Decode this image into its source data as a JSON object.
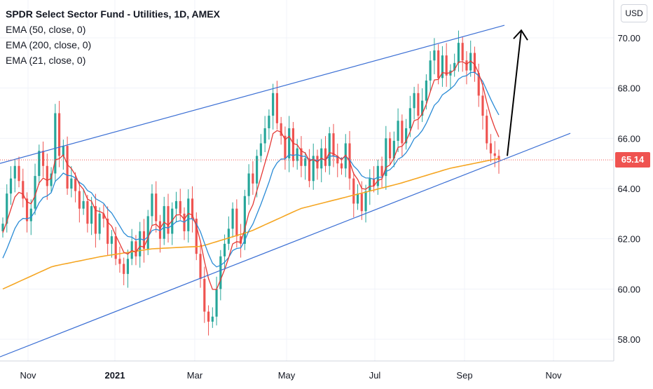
{
  "chart_data": {
    "type": "candlestick",
    "title": "SPDR Select Sector Fund - Utilities, 1D, AMEX",
    "currency": "USD",
    "last_price": "65.14",
    "ylim": [
      57,
      71.5
    ],
    "y_ticks": [
      "58.00",
      "60.00",
      "62.00",
      "64.00",
      "66.00",
      "68.00",
      "70.00"
    ],
    "x_ticks": [
      "Nov",
      "2021",
      "Mar",
      "May",
      "Jul",
      "Sep",
      "Nov"
    ],
    "grid": true,
    "legend": [
      {
        "label": "EMA (50, close, 0)",
        "color": "#2a8bd6"
      },
      {
        "label": "EMA (200, close, 0)",
        "color": "#f5a623"
      },
      {
        "label": "EMA (21, close, 0)",
        "color": "#e53935"
      }
    ],
    "colors": {
      "up": "#26a69a",
      "down": "#ef5350",
      "channel": "#3b6fd4",
      "ema50": "#2a8bd6",
      "ema200": "#f5a623",
      "ema21": "#e53935",
      "price_line": "#ef5350",
      "price_badge": "#ef5350",
      "arrow": "#000000"
    },
    "closes": [
      62.6,
      63.8,
      64.4,
      64.9,
      64.3,
      63.6,
      62.7,
      63.2,
      64.5,
      65.5,
      64.9,
      64.1,
      64.6,
      67.0,
      65.3,
      65.7,
      64.0,
      64.4,
      63.9,
      63.2,
      63.5,
      62.6,
      63.3,
      62.2,
      63.0,
      62.8,
      61.8,
      62.1,
      61.2,
      61.0,
      60.6,
      61.2,
      61.9,
      61.3,
      62.3,
      61.6,
      62.9,
      63.8,
      62.7,
      62.0,
      63.3,
      62.2,
      63.2,
      63.5,
      63.0,
      62.3,
      63.6,
      62.8,
      61.4,
      60.4,
      59.1,
      58.7,
      58.9,
      60.0,
      61.3,
      61.8,
      62.4,
      63.2,
      62.1,
      61.8,
      63.7,
      64.6,
      64.2,
      65.3,
      65.8,
      66.4,
      66.9,
      67.8,
      66.6,
      66.1,
      65.2,
      66.4,
      65.1,
      65.6,
      64.9,
      65.2,
      64.3,
      65.3,
      64.8,
      65.6,
      64.9,
      66.2,
      65.3,
      65.0,
      64.8,
      65.8,
      64.4,
      63.4,
      63.8,
      63.1,
      63.9,
      64.4,
      64.1,
      64.9,
      64.5,
      66.0,
      65.2,
      65.9,
      66.7,
      65.8,
      66.4,
      67.2,
      67.8,
      66.9,
      67.5,
      68.3,
      69.1,
      69.5,
      68.4,
      69.3,
      68.5,
      68.7,
      69.0,
      69.8,
      69.1,
      68.7,
      69.4,
      68.6,
      67.7,
      66.9,
      65.8,
      65.4,
      65.3,
      65.14
    ],
    "channel_upper": {
      "from": {
        "date": "Oct 2020",
        "value": 65.0
      },
      "to": {
        "date": "Sep 2021",
        "value": 70.5
      }
    },
    "channel_lower": {
      "from": {
        "date": "Oct 2020",
        "value": 57.3
      },
      "to": {
        "date": "Oct 2021",
        "value": 66.2
      }
    },
    "projection_arrow": {
      "from_value": 65.3,
      "to_value": 70.3
    }
  }
}
